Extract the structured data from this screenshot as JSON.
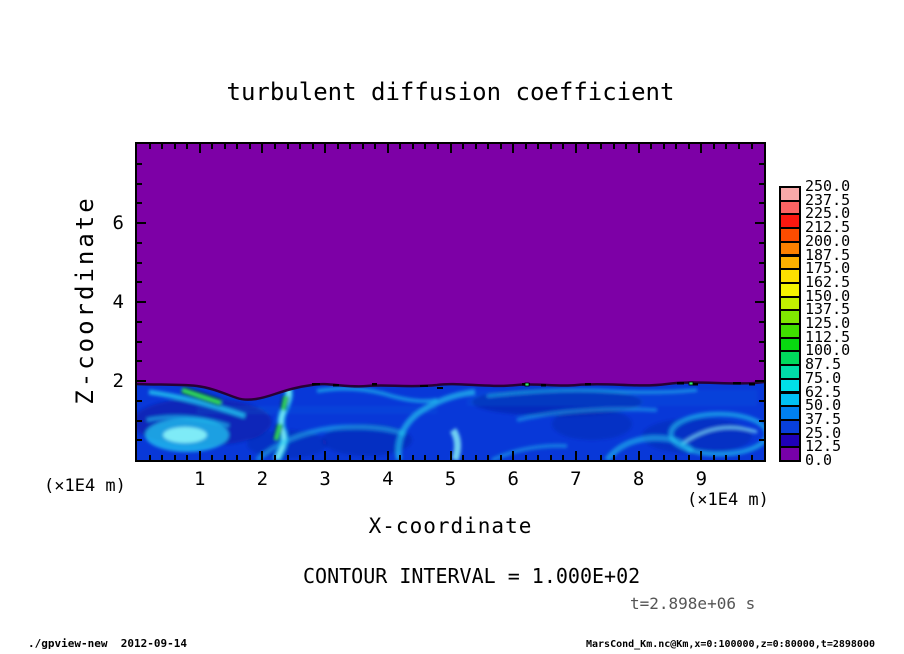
{
  "title": "turbulent diffusion coefficient",
  "axes": {
    "x": {
      "label": "X-coordinate",
      "unit_label": "(×1E4 m)",
      "tick_labels": [
        "1",
        "2",
        "3",
        "4",
        "5",
        "6",
        "7",
        "8",
        "9"
      ],
      "tick_values": [
        1,
        2,
        3,
        4,
        5,
        6,
        7,
        8,
        9
      ],
      "minor_step": 0.2,
      "range": [
        0,
        10
      ]
    },
    "z": {
      "label": "Z-coordinate",
      "unit_label": "(×1E4 m)",
      "tick_labels": [
        "2",
        "4",
        "6"
      ],
      "tick_values": [
        2,
        4,
        6
      ],
      "minor_step": 0.5,
      "range": [
        0,
        8
      ]
    }
  },
  "colorbar": {
    "tick_labels": [
      "250.0",
      "237.5",
      "225.0",
      "212.5",
      "200.0",
      "187.5",
      "175.0",
      "162.5",
      "150.0",
      "137.5",
      "125.0",
      "112.5",
      "100.0",
      "87.5",
      "75.0",
      "62.5",
      "50.0",
      "37.5",
      "25.0",
      "12.5",
      "0.0"
    ],
    "box_colors_top_to_bottom": [
      "#f8a8a8",
      "#fc6464",
      "#fc1810",
      "#fc4c00",
      "#fc8000",
      "#fcb000",
      "#fce000",
      "#f4f400",
      "#c0f000",
      "#80e800",
      "#40e000",
      "#08d810",
      "#00d85c",
      "#00dca8",
      "#00e0e8",
      "#00c0f4",
      "#0080f0",
      "#0840dc",
      "#2000b8",
      "#7800a8"
    ]
  },
  "annotations": {
    "contour_interval": "CONTOUR INTERVAL = 1.000E+02",
    "time": "t=2.898e+06 s"
  },
  "footer": {
    "left": "./gpview-new  2012-09-14",
    "right": "MarsCond_Km.nc@Km,x=0:100000,z=0:80000,t=2898000"
  },
  "colors": {
    "purple": "#7d00a6",
    "band_base": "#0838d8",
    "band_deep": "#0a20a8",
    "cyan": "#22c8f0",
    "cyan_bright": "#8af4f8",
    "green": "#34ec6c",
    "boundary_dark": "#26002c",
    "frame": "#000000",
    "time_text": "#555555"
  },
  "chart_data": {
    "type": "heatmap",
    "title": "turbulent diffusion coefficient",
    "xlabel": "X-coordinate",
    "ylabel": "Z-coordinate",
    "x_unit": "×1E4 m",
    "z_unit": "×1E4 m",
    "xlim_m": [
      0,
      100000
    ],
    "zlim_m": [
      0,
      80000
    ],
    "x_ticks": [
      1,
      2,
      3,
      4,
      5,
      6,
      7,
      8,
      9
    ],
    "z_ticks": [
      2,
      4,
      6
    ],
    "levels": [
      0,
      12.5,
      25,
      37.5,
      50,
      62.5,
      75,
      87.5,
      100,
      112.5,
      125,
      137.5,
      150,
      162.5,
      175,
      187.5,
      200,
      212.5,
      225,
      237.5,
      250
    ],
    "contour_interval": 100.0,
    "time_seconds": 2898000,
    "time_label": "t=2.898e+06 s",
    "legend_position": "right",
    "grid": false,
    "field_description": "Uniform low diffusion coefficient (0-12.5, purple) everywhere above z≈2×1E4 m; turbulent convective boundary layer below z≈2×1E4 m filled with blue eddies mostly in the 25-100 range, bright cyan swirls and plumes ~62.5-100, isolated green maxima ~125-150 outlined by contours near x≈1-2.5×1E4 m, and a thin dark wavy interface along z≈2×1E4 m",
    "source_expr": "MarsCond_Km.nc@Km,x=0:100000,z=0:80000,t=2898000"
  }
}
